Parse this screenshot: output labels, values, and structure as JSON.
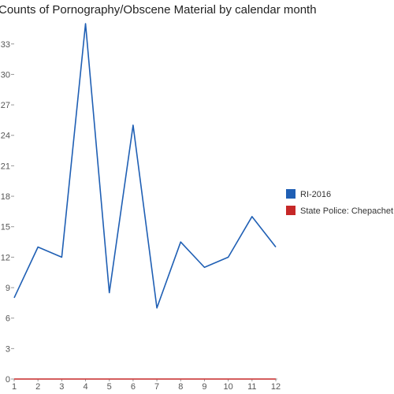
{
  "chart_data": {
    "type": "line",
    "title": "Counts of Pornography/Obscene Material by calendar month",
    "xlabel": "",
    "ylabel": "",
    "x": [
      1,
      2,
      3,
      4,
      5,
      6,
      7,
      8,
      9,
      10,
      11,
      12
    ],
    "x_tick_labels": [
      "1",
      "2",
      "3",
      "4",
      "5",
      "6",
      "7",
      "8",
      "9",
      "10",
      "11",
      "12"
    ],
    "y_ticks": [
      0,
      3,
      6,
      9,
      12,
      15,
      18,
      21,
      24,
      27,
      30,
      33
    ],
    "y_tick_labels": [
      "0",
      "3",
      "6",
      "9",
      "12",
      "15",
      "18",
      "21",
      "24",
      "27",
      "30",
      "33"
    ],
    "xlim": [
      1,
      12
    ],
    "ylim": [
      0,
      35
    ],
    "grid": false,
    "legend_position": "right",
    "series": [
      {
        "name": "RI-2016",
        "color": "#1f5fb4",
        "values": [
          8,
          13,
          12,
          35,
          8.5,
          25,
          7,
          13.5,
          11,
          12,
          16,
          13
        ]
      },
      {
        "name": "State Police: Chepachet",
        "color": "#c62828",
        "values": [
          0,
          0,
          0,
          0,
          0,
          0,
          0,
          0,
          0,
          0,
          0,
          0
        ]
      }
    ]
  }
}
